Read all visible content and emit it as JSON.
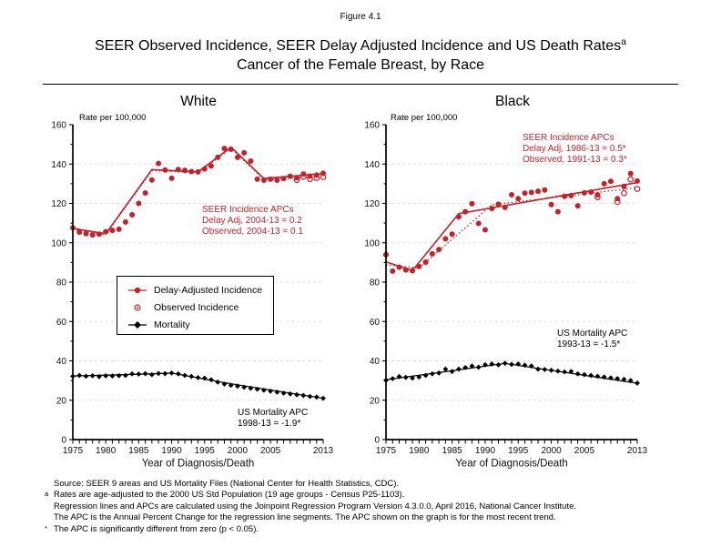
{
  "figure_label": "Figure 4.1",
  "title": {
    "line1": "SEER Observed Incidence, SEER Delay Adjusted Incidence and US Death Rates",
    "superscript": "a",
    "line2": "Cancer of the Female Breast, by Race"
  },
  "colors": {
    "incidence_red": "#C8202A",
    "mortality_black": "#000000",
    "gridline_gray": "#DFDFDF"
  },
  "legend": {
    "items": [
      {
        "label": "Delay-Adjusted Incidence",
        "marker": "red-filled-circle-on-line"
      },
      {
        "label": "Observed Incidence",
        "marker": "red-open-circle"
      },
      {
        "label": "Mortality",
        "marker": "black-diamond-on-line"
      }
    ]
  },
  "footnotes": [
    {
      "marker": "",
      "text": "Source: SEER 9 areas and US Mortality Files (National Center for Health Statistics, CDC)."
    },
    {
      "marker": "a",
      "text": "Rates are age-adjusted to the 2000 US Std Population (19 age groups - Census P25-1103)."
    },
    {
      "marker": "",
      "text": "Regression lines and APCs are calculated using the Joinpoint Regression Program Version 4.3.0.0, April 2016, National Cancer Institute."
    },
    {
      "marker": "",
      "text": "The APC is the Annual Percent Change for the regression line segments. The APC shown on the graph is for the most recent trend."
    },
    {
      "marker": "*",
      "text": "The APC is significantly different from zero (p < 0.05)."
    }
  ],
  "chart_data": [
    {
      "type": "scatter",
      "title": "White",
      "rate_label": "Rate per 100,000",
      "xlabel": "Year of Diagnosis/Death",
      "xlim": [
        1975,
        2013
      ],
      "ylim": [
        0,
        160
      ],
      "x_ticks": [
        1975,
        1980,
        1985,
        1990,
        1995,
        2000,
        2005,
        2013
      ],
      "y_ticks": [
        0,
        20,
        40,
        60,
        80,
        100,
        120,
        140,
        160
      ],
      "grid": "horizontal-dashed",
      "years": [
        1975,
        1976,
        1977,
        1978,
        1979,
        1980,
        1981,
        1982,
        1983,
        1984,
        1985,
        1986,
        1987,
        1988,
        1989,
        1990,
        1991,
        1992,
        1993,
        1994,
        1995,
        1996,
        1997,
        1998,
        1999,
        2000,
        2001,
        2002,
        2003,
        2004,
        2005,
        2006,
        2007,
        2008,
        2009,
        2010,
        2011,
        2012,
        2013
      ],
      "series": [
        {
          "name": "Delay-Adjusted Incidence",
          "marker": "filled-circle",
          "color": "#C8202A",
          "values": [
            107.6,
            105.4,
            104.6,
            104.0,
            104.4,
            105.6,
            106.3,
            106.9,
            110.6,
            114.2,
            120.0,
            125.3,
            131.9,
            140.3,
            137.0,
            132.8,
            137.2,
            136.8,
            136.2,
            136.0,
            137.5,
            139.0,
            143.4,
            147.9,
            147.5,
            143.4,
            145.7,
            141.5,
            132.3,
            131.8,
            132.3,
            131.8,
            132.6,
            133.8,
            133.0,
            134.9,
            133.9,
            134.4,
            135.3
          ]
        },
        {
          "name": "Observed Incidence",
          "marker": "open-circle",
          "color": "#C8202A",
          "values": [
            null,
            null,
            null,
            null,
            null,
            null,
            null,
            null,
            null,
            null,
            null,
            null,
            null,
            null,
            null,
            null,
            null,
            null,
            null,
            null,
            null,
            null,
            null,
            null,
            null,
            null,
            null,
            null,
            null,
            null,
            null,
            null,
            null,
            null,
            131.9,
            133.6,
            132.4,
            132.9,
            133.4
          ]
        },
        {
          "name": "Mortality",
          "marker": "filled-diamond",
          "color": "#000000",
          "values": [
            32.2,
            32.6,
            32.2,
            32.4,
            32.0,
            32.4,
            32.3,
            32.5,
            32.6,
            33.4,
            33.3,
            33.5,
            33.0,
            33.6,
            33.5,
            33.8,
            33.4,
            32.6,
            32.1,
            31.5,
            31.2,
            30.4,
            29.2,
            28.2,
            27.6,
            27.2,
            26.6,
            26.1,
            25.6,
            25.1,
            24.6,
            24.1,
            23.6,
            23.2,
            22.8,
            22.4,
            21.9,
            21.6,
            21.0
          ]
        }
      ],
      "regression_lines": [
        {
          "series": "Delay-Adjusted Incidence",
          "style": "solid",
          "color": "#C8202A",
          "points": [
            [
              1975,
              107.3
            ],
            [
              1980,
              104.6
            ],
            [
              1987,
              137.2
            ],
            [
              1994,
              136.0
            ],
            [
              1999,
              148.6
            ],
            [
              2004,
              132.7
            ],
            [
              2013,
              135.2
            ]
          ]
        },
        {
          "series": "Observed Incidence",
          "style": "dotted",
          "color": "#C8202A",
          "points": [
            [
              1975,
              106.9
            ],
            [
              1980,
              104.2
            ],
            [
              1987,
              136.7
            ],
            [
              1994,
              135.6
            ],
            [
              1999,
              148.0
            ],
            [
              2004,
              132.2
            ],
            [
              2013,
              133.6
            ]
          ]
        },
        {
          "series": "Mortality",
          "style": "solid",
          "color": "#000000",
          "points": [
            [
              1975,
              32.3
            ],
            [
              1986,
              33.3
            ],
            [
              1990,
              33.8
            ],
            [
              1998,
              28.9
            ],
            [
              2013,
              21.0
            ]
          ]
        }
      ],
      "annotations": [
        {
          "id": "seer-incidence-apcs",
          "color": "#C8202A",
          "lines": [
            "SEER Incidence APCs",
            "Delay Adj, 2004-13 = 0.2",
            "Observed, 2004-13 = 0.1"
          ]
        },
        {
          "id": "us-mortality-apc",
          "color": "#000000",
          "lines": [
            "US Mortality APC",
            "1998-13 = -1.9*"
          ]
        }
      ]
    },
    {
      "type": "scatter",
      "title": "Black",
      "rate_label": "Rate per 100,000",
      "xlabel": "Year of Diagnosis/Death",
      "xlim": [
        1975,
        2013
      ],
      "ylim": [
        0,
        160
      ],
      "x_ticks": [
        1975,
        1980,
        1985,
        1990,
        1995,
        2000,
        2005,
        2013
      ],
      "y_ticks": [
        0,
        20,
        40,
        60,
        80,
        100,
        120,
        140,
        160
      ],
      "grid": "horizontal-dashed",
      "years": [
        1975,
        1976,
        1977,
        1978,
        1979,
        1980,
        1981,
        1982,
        1983,
        1984,
        1985,
        1986,
        1987,
        1988,
        1989,
        1990,
        1991,
        1992,
        1993,
        1994,
        1995,
        1996,
        1997,
        1998,
        1999,
        2000,
        2001,
        2002,
        2003,
        2004,
        2005,
        2006,
        2007,
        2008,
        2009,
        2010,
        2011,
        2012,
        2013
      ],
      "series": [
        {
          "name": "Delay-Adjusted Incidence",
          "marker": "filled-circle",
          "color": "#C8202A",
          "values": [
            94.0,
            85.6,
            87.6,
            86.2,
            85.8,
            88.0,
            90.2,
            94.4,
            96.6,
            102.0,
            104.4,
            113.2,
            115.8,
            119.8,
            109.8,
            106.6,
            117.4,
            119.6,
            118.0,
            124.4,
            122.4,
            125.2,
            125.6,
            126.2,
            126.8,
            119.4,
            115.8,
            123.6,
            124.0,
            118.8,
            125.4,
            125.8,
            124.4,
            130.0,
            131.2,
            122.4,
            128.6,
            135.2,
            131.4
          ]
        },
        {
          "name": "Observed Incidence",
          "marker": "open-circle",
          "color": "#C8202A",
          "values": [
            null,
            null,
            null,
            null,
            null,
            null,
            null,
            null,
            null,
            null,
            null,
            null,
            null,
            null,
            null,
            null,
            null,
            null,
            null,
            null,
            null,
            null,
            null,
            null,
            null,
            null,
            null,
            null,
            null,
            null,
            null,
            null,
            123.2,
            null,
            null,
            120.8,
            125.2,
            132.2,
            127.4
          ]
        },
        {
          "name": "Mortality",
          "marker": "filled-diamond",
          "color": "#000000",
          "values": [
            30.1,
            31.0,
            32.0,
            31.6,
            31.2,
            31.8,
            32.6,
            33.4,
            33.8,
            35.8,
            34.6,
            35.8,
            36.6,
            37.4,
            36.8,
            38.0,
            38.4,
            38.0,
            38.8,
            38.2,
            38.4,
            37.8,
            37.4,
            35.8,
            35.6,
            35.2,
            34.8,
            34.4,
            34.6,
            33.4,
            33.0,
            32.6,
            32.2,
            31.8,
            31.4,
            31.0,
            30.6,
            30.0,
            28.7
          ]
        }
      ],
      "regression_lines": [
        {
          "series": "Delay-Adjusted Incidence",
          "style": "solid",
          "color": "#C8202A",
          "points": [
            [
              1975,
              90.3
            ],
            [
              1979,
              85.9
            ],
            [
              1986,
              114.8
            ],
            [
              2013,
              130.6
            ]
          ]
        },
        {
          "series": "Observed Incidence",
          "style": "dotted",
          "color": "#C8202A",
          "points": [
            [
              1975,
              88.8
            ],
            [
              1980,
              87.2
            ],
            [
              1991,
              119.3
            ],
            [
              2013,
              128.0
            ]
          ]
        },
        {
          "series": "Mortality",
          "style": "solid",
          "color": "#000000",
          "points": [
            [
              1975,
              30.4
            ],
            [
              1993,
              38.7
            ],
            [
              2013,
              28.6
            ]
          ]
        }
      ],
      "annotations": [
        {
          "id": "seer-incidence-apcs",
          "color": "#C8202A",
          "lines": [
            "SEER Incidence APCs",
            "Delay Adj, 1986-13 = 0.5*",
            "Observed, 1991-13 = 0.3*"
          ]
        },
        {
          "id": "us-mortality-apc",
          "color": "#000000",
          "lines": [
            "US Mortality APC",
            "1993-13 = -1.5*"
          ]
        }
      ]
    }
  ]
}
